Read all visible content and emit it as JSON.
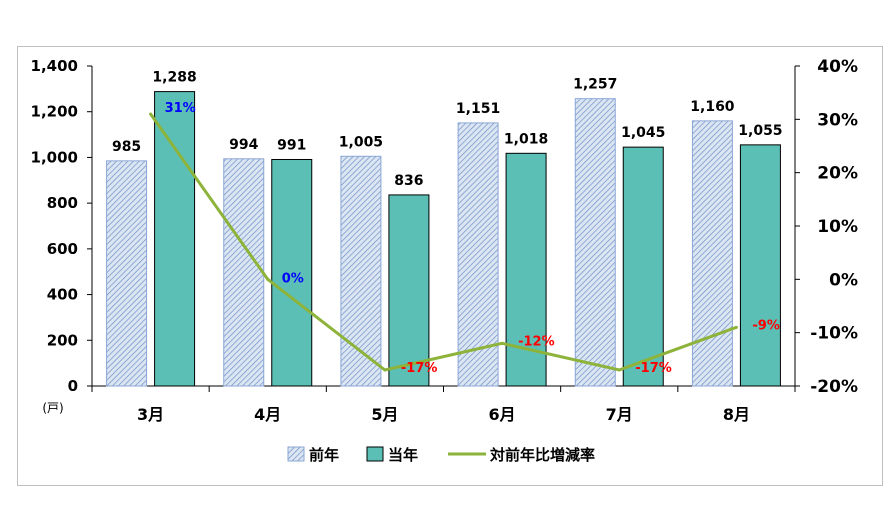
{
  "chart_data": {
    "type": "bar",
    "categories": [
      "3月",
      "4月",
      "5月",
      "6月",
      "7月",
      "8月"
    ],
    "series": [
      {
        "name": "前年",
        "type": "bar",
        "axis": "left",
        "values": [
          985,
          994,
          1005,
          1151,
          1257,
          1160
        ],
        "labels": [
          "985",
          "994",
          "1,005",
          "1,151",
          "1,257",
          "1,160"
        ],
        "color": "#dce6f2",
        "hatch": "#6f8fc9"
      },
      {
        "name": "当年",
        "type": "bar",
        "axis": "left",
        "values": [
          1288,
          991,
          836,
          1018,
          1045,
          1055
        ],
        "labels": [
          "1,288",
          "991",
          "836",
          "1,018",
          "1,045",
          "1,055"
        ],
        "color": "#5bbfb5"
      },
      {
        "name": "対前年比増減率",
        "type": "line",
        "axis": "right",
        "values": [
          31,
          0,
          -17,
          -12,
          -17,
          -9
        ],
        "labels": [
          "31%",
          "0%",
          "-17%",
          "-12%",
          "-17%",
          "-9%"
        ],
        "color": "#8db33a",
        "label_colors": [
          "#0000ff",
          "#0000ff",
          "#ff0000",
          "#ff0000",
          "#ff0000",
          "#ff0000"
        ]
      }
    ],
    "y_left": {
      "ylim": [
        0,
        1400
      ],
      "ticks": [
        0,
        200,
        400,
        600,
        800,
        1000,
        1200,
        1400
      ],
      "tick_labels": [
        "0",
        "200",
        "400",
        "600",
        "800",
        "1,000",
        "1,200",
        "1,400"
      ],
      "unit": "(戸)"
    },
    "y_right": {
      "ylim": [
        -20,
        40
      ],
      "ticks": [
        -20,
        -10,
        0,
        10,
        20,
        30,
        40
      ],
      "tick_labels": [
        "-20%",
        "-10%",
        "0%",
        "10%",
        "20%",
        "30%",
        "40%"
      ]
    },
    "legend": {
      "position": "bottom"
    },
    "grid": false
  }
}
